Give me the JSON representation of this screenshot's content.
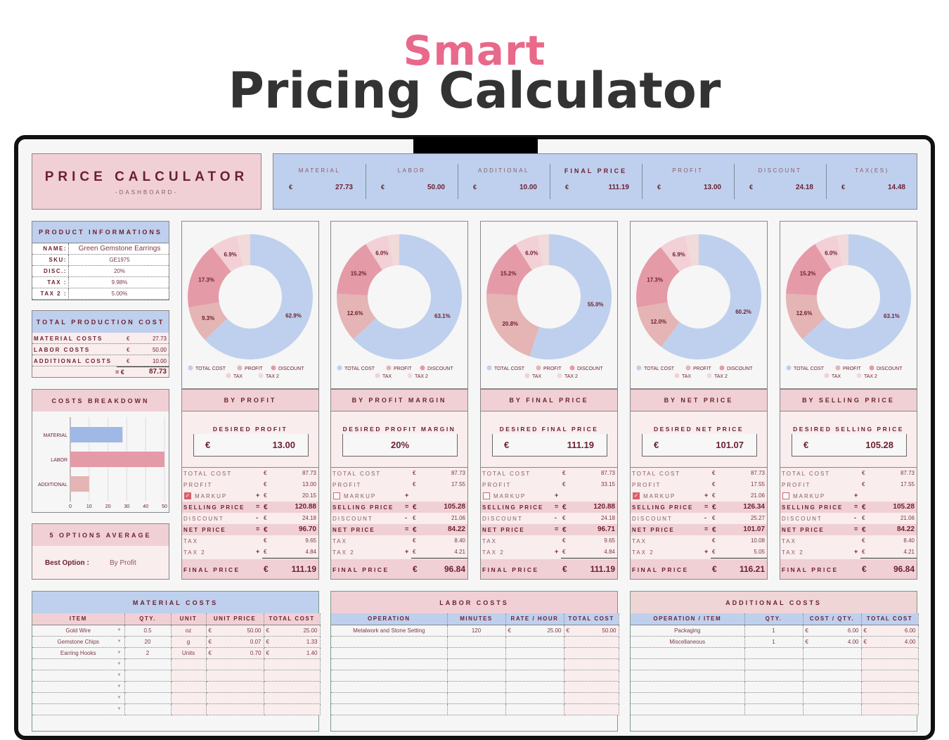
{
  "heading": {
    "line1": "Smart",
    "line2": "Pricing Calculator"
  },
  "colors": {
    "accent": "#e8698a",
    "blue": "#bfd0ee",
    "pink": "#f0d0d5",
    "text": "#6b1f2e",
    "total_cost": "#bfd0ee",
    "profit": "#e5b4b4",
    "discount": "#e59aa8",
    "tax": "#f3cfd6",
    "tax2": "#f0dada"
  },
  "dashboard": {
    "title": "PRICE CALCULATOR",
    "subtitle": "-DASHBOARD-"
  },
  "summary": [
    {
      "label": "MATERIAL",
      "cur": "€",
      "value": "27.73"
    },
    {
      "label": "LABOR",
      "cur": "€",
      "value": "50.00"
    },
    {
      "label": "ADDITIONAL",
      "cur": "€",
      "value": "10.00"
    },
    {
      "label": "FINAL PRICE",
      "cur": "€",
      "value": "111.19"
    },
    {
      "label": "PROFIT",
      "cur": "€",
      "value": "13.00"
    },
    {
      "label": "DISCOUNT",
      "cur": "€",
      "value": "24.18"
    },
    {
      "label": "TAX(ES)",
      "cur": "€",
      "value": "14.48"
    }
  ],
  "product": {
    "title": "PRODUCT INFORMATIONS",
    "rows": [
      {
        "k": "NAME:",
        "v": "Green Gemstone Earrings"
      },
      {
        "k": "SKU:",
        "v": "GE1975"
      },
      {
        "k": "DISC.:",
        "v": "20%"
      },
      {
        "k": "TAX :",
        "v": "9.98%"
      },
      {
        "k": "TAX 2 :",
        "v": "5.00%"
      }
    ]
  },
  "production": {
    "title": "TOTAL PRODUCTION COST",
    "rows": [
      {
        "k": "MATERIAL COSTS",
        "cur": "€",
        "v": "27.73"
      },
      {
        "k": "LABOR COSTS",
        "cur": "€",
        "v": "50.00"
      },
      {
        "k": "ADDITIONAL COSTS",
        "cur": "€",
        "v": "10.00"
      }
    ],
    "total_prefix": "= €",
    "total": "87.73"
  },
  "breakdown": {
    "title": "COSTS BREAKDOWN"
  },
  "average": {
    "title": "5 OPTIONS AVERAGE",
    "label": "Best Option :",
    "value": "By Profit"
  },
  "chart_data": [
    {
      "type": "bar",
      "orientation": "horizontal",
      "categories": [
        "MATERIAL",
        "LABOR",
        "ADDITIONAL"
      ],
      "values": [
        27.73,
        50,
        10
      ],
      "xlim": [
        0,
        50
      ],
      "xticks": [
        "0",
        "10",
        "20",
        "30",
        "40",
        "50"
      ],
      "grid": true
    },
    {
      "type": "pie",
      "donut": true,
      "legend": [
        "TOTAL COST",
        "PROFIT",
        "DISCOUNT",
        "TAX",
        "TAX 2"
      ],
      "values": [
        62.9,
        9.3,
        17.3,
        6.9,
        3.5
      ],
      "labels": [
        "62.9%",
        "9.3%",
        "17.3%",
        "6.9%",
        ""
      ],
      "legend_position": "bottom"
    },
    {
      "type": "pie",
      "donut": true,
      "legend": [
        "TOTAL COST",
        "PROFIT",
        "DISCOUNT",
        "TAX",
        "TAX 2"
      ],
      "values": [
        63.1,
        12.6,
        15.2,
        6.0,
        3.0
      ],
      "labels": [
        "63.1%",
        "12.6%",
        "15.2%",
        "6.0%",
        ""
      ],
      "legend_position": "bottom"
    },
    {
      "type": "pie",
      "donut": true,
      "legend": [
        "TOTAL COST",
        "PROFIT",
        "DISCOUNT",
        "TAX",
        "TAX 2"
      ],
      "values": [
        55.0,
        20.8,
        15.2,
        6.0,
        3.0
      ],
      "labels": [
        "55.0%",
        "20.8%",
        "15.2%",
        "6.0%",
        ""
      ],
      "legend_position": "bottom"
    },
    {
      "type": "pie",
      "donut": true,
      "legend": [
        "TOTAL COST",
        "PROFIT",
        "DISCOUNT",
        "TAX",
        "TAX 2"
      ],
      "values": [
        60.2,
        12.0,
        17.3,
        6.9,
        3.5
      ],
      "labels": [
        "60.2%",
        "12.0%",
        "17.3%",
        "6.9%",
        ""
      ],
      "legend_position": "bottom"
    },
    {
      "type": "pie",
      "donut": true,
      "legend": [
        "TOTAL COST",
        "PROFIT",
        "DISCOUNT",
        "TAX",
        "TAX 2"
      ],
      "values": [
        63.1,
        12.6,
        15.2,
        6.0,
        3.0
      ],
      "labels": [
        "63.1%",
        "12.6%",
        "15.2%",
        "6.0%",
        ""
      ],
      "legend_position": "bottom"
    }
  ],
  "row_labels": {
    "total": "TOTAL COST",
    "profit": "PROFIT",
    "markup": "MARKUP",
    "selling": "SELLING PRICE",
    "discount": "DISCOUNT",
    "net": "NET PRICE",
    "tax": "TAX",
    "tax2": "TAX 2",
    "final": "FINAL PRICE",
    "cur": "€"
  },
  "methods": [
    {
      "title": "BY PROFIT",
      "input_label": "DESIRED PROFIT",
      "input_cur": "€",
      "input_value": "13.00",
      "markup_checked": true,
      "total": "87.73",
      "profit": "13.00",
      "markup": "20.15",
      "selling": "120.88",
      "discount": "24.18",
      "net": "96.70",
      "tax": "9.65",
      "tax2": "4.84",
      "final": "111.19"
    },
    {
      "title": "BY PROFIT MARGIN",
      "input_label": "DESIRED PROFIT MARGIN",
      "input_cur": "",
      "input_value": "20%",
      "markup_checked": false,
      "total": "87.73",
      "profit": "17.55",
      "markup": "",
      "selling": "105.28",
      "discount": "21.06",
      "net": "84.22",
      "tax": "8.40",
      "tax2": "4.21",
      "final": "96.84"
    },
    {
      "title": "BY FINAL PRICE",
      "input_label": "DESIRED FINAL PRICE",
      "input_cur": "€",
      "input_value": "111.19",
      "markup_checked": false,
      "total": "87.73",
      "profit": "33.15",
      "markup": "",
      "selling": "120.88",
      "discount": "24.18",
      "net": "96.71",
      "tax": "9.65",
      "tax2": "4.84",
      "final": "111.19"
    },
    {
      "title": "BY NET PRICE",
      "input_label": "DESIRED NET PRICE",
      "input_cur": "€",
      "input_value": "101.07",
      "markup_checked": true,
      "total": "87.73",
      "profit": "17.55",
      "markup": "21.06",
      "selling": "126.34",
      "discount": "25.27",
      "net": "101.07",
      "tax": "10.08",
      "tax2": "5.05",
      "final": "116.21"
    },
    {
      "title": "BY SELLING PRICE",
      "input_label": "DESIRED SELLING PRICE",
      "input_cur": "€",
      "input_value": "105.28",
      "markup_checked": false,
      "total": "87.73",
      "profit": "17.55",
      "markup": "",
      "selling": "105.28",
      "discount": "21.06",
      "net": "84.22",
      "tax": "8.40",
      "tax2": "4.21",
      "final": "96.84"
    }
  ],
  "material_costs": {
    "title": "MATERIAL COSTS",
    "columns": [
      "ITEM",
      "QTY.",
      "UNIT",
      "UNIT PRICE",
      "TOTAL COST"
    ],
    "rows": [
      [
        "Gold Wire",
        "0.5",
        "oz",
        "50.00",
        "25.00"
      ],
      [
        "Gemstone Chips",
        "20",
        "g",
        "0.07",
        "1.33"
      ],
      [
        "Earring Hooks",
        "2",
        "Units",
        "0.70",
        "1.40"
      ]
    ],
    "empty_rows": 5
  },
  "labor_costs": {
    "title": "LABOR COSTS",
    "columns": [
      "OPERATION",
      "MINUTES",
      "RATE / HOUR",
      "TOTAL COST"
    ],
    "rows": [
      [
        "Metalwork and Stone Setting",
        "120",
        "25.00",
        "50.00"
      ]
    ],
    "empty_rows": 7
  },
  "additional_costs": {
    "title": "ADDITIONAL COSTS",
    "columns": [
      "OPERATION / ITEM",
      "QTY.",
      "COST / QTY.",
      "TOTAL COST"
    ],
    "rows": [
      [
        "Packaging",
        "1",
        "6.00",
        "6.00"
      ],
      [
        "Miscellaneous",
        "1",
        "4.00",
        "4.00"
      ]
    ],
    "empty_rows": 6
  }
}
